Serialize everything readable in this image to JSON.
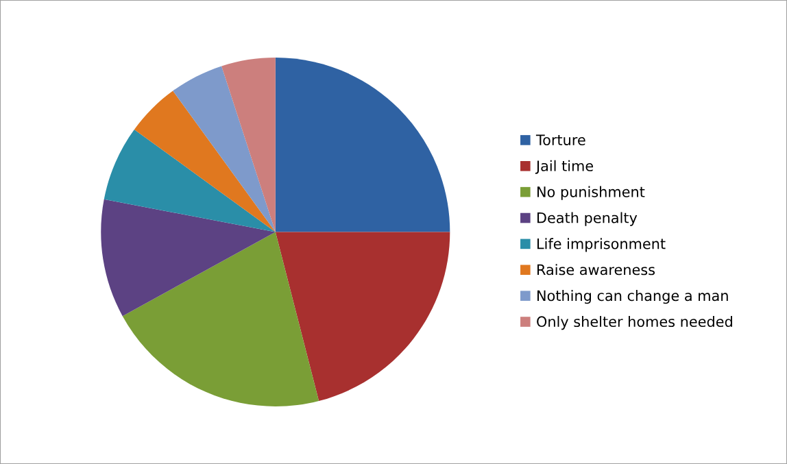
{
  "chart_data": {
    "type": "pie",
    "categories": [
      "Torture",
      "Jail time",
      "No punishment",
      "Death penalty",
      "Life imprisonment",
      "Raise awareness",
      "Nothing can change a man",
      "Only shelter homes needed"
    ],
    "values": [
      25,
      21,
      21,
      11,
      7,
      5,
      5,
      5
    ],
    "colors": [
      "#2f62a3",
      "#a8302f",
      "#7a9e36",
      "#5c4283",
      "#2a8ea8",
      "#e0781f",
      "#7e9acb",
      "#cc7f7d"
    ],
    "legend": "right"
  }
}
